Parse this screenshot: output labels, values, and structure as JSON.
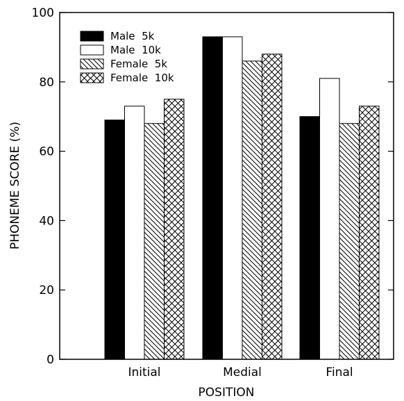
{
  "chart_data": {
    "type": "bar",
    "title": "",
    "xlabel": "POSITION",
    "ylabel": "PHONEME SCORE (%)",
    "ylim": [
      0,
      100
    ],
    "yticks": [
      "0",
      "20",
      "40",
      "60",
      "80",
      "100"
    ],
    "grid": false,
    "legend_position": "top-left",
    "categories": [
      "Initial",
      "Medial",
      "Final"
    ],
    "series": [
      {
        "name": "Male  5k",
        "fill": "solid",
        "color": "#000000",
        "values": [
          69,
          93,
          70
        ]
      },
      {
        "name": "Male  10k",
        "fill": "white",
        "color": "#ffffff",
        "values": [
          73,
          93,
          81
        ]
      },
      {
        "name": "Female  5k",
        "fill": "diagonal-hatch",
        "color": "#000000",
        "values": [
          68,
          86,
          68
        ]
      },
      {
        "name": "Female  10k",
        "fill": "cross-hatch",
        "color": "#000000",
        "values": [
          75,
          88,
          73
        ]
      }
    ]
  }
}
